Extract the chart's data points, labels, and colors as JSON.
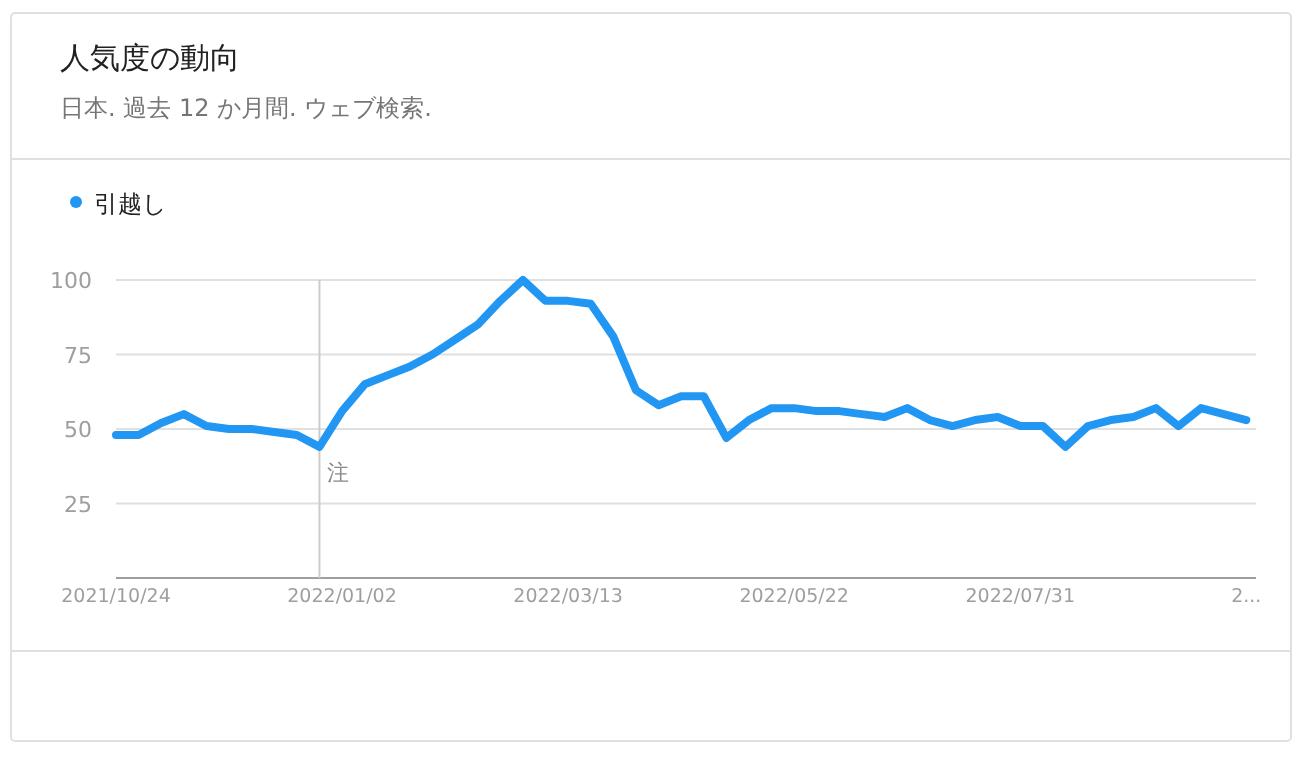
{
  "chart_data": {
    "type": "line",
    "title": "人気度の動向",
    "subtitle": "日本. 過去 12 か月間. ウェブ検索.",
    "x": [
      "2021-10-24",
      "2021-10-31",
      "2021-11-07",
      "2021-11-14",
      "2021-11-21",
      "2021-11-28",
      "2021-12-05",
      "2021-12-12",
      "2021-12-19",
      "2021-12-26",
      "2022-01-02",
      "2022-01-09",
      "2022-01-16",
      "2022-01-23",
      "2022-01-30",
      "2022-02-06",
      "2022-02-13",
      "2022-02-20",
      "2022-02-27",
      "2022-03-06",
      "2022-03-13",
      "2022-03-20",
      "2022-03-27",
      "2022-04-03",
      "2022-04-10",
      "2022-04-17",
      "2022-04-24",
      "2022-05-01",
      "2022-05-08",
      "2022-05-15",
      "2022-05-22",
      "2022-05-29",
      "2022-06-05",
      "2022-06-12",
      "2022-06-19",
      "2022-06-26",
      "2022-07-03",
      "2022-07-10",
      "2022-07-17",
      "2022-07-24",
      "2022-07-31",
      "2022-08-07",
      "2022-08-14",
      "2022-08-21",
      "2022-08-28",
      "2022-09-04",
      "2022-09-11",
      "2022-09-18",
      "2022-09-25",
      "2022-10-02",
      "2022-10-09"
    ],
    "series": [
      {
        "name": "引越し",
        "color": "#2196f3",
        "values": [
          48,
          48,
          52,
          55,
          51,
          50,
          50,
          49,
          48,
          44,
          56,
          65,
          68,
          71,
          75,
          80,
          85,
          93,
          100,
          93,
          93,
          92,
          81,
          63,
          58,
          61,
          61,
          47,
          53,
          57,
          57,
          56,
          56,
          55,
          54,
          57,
          53,
          51,
          53,
          54,
          51,
          51,
          44,
          51,
          53,
          54,
          57,
          51,
          57,
          55,
          53
        ]
      }
    ],
    "xlim": [
      "2021-10-24",
      "2022-10-12"
    ],
    "xticks": [
      {
        "value": "2021-10-24",
        "label": "2021/10/24"
      },
      {
        "value": "2022-01-02",
        "label": "2022/01/02"
      },
      {
        "value": "2022-03-13",
        "label": "2022/03/13"
      },
      {
        "value": "2022-05-22",
        "label": "2022/05/22"
      },
      {
        "value": "2022-07-31",
        "label": "2022/07/31"
      },
      {
        "value": "2022-10-09",
        "label": "2..."
      }
    ],
    "ylim": [
      0,
      100
    ],
    "yticks": [
      25,
      50,
      75,
      100
    ],
    "grid": "y",
    "legend": "top left",
    "marker": "none",
    "line_style": "solid",
    "ref_lines": [
      {
        "axis": "x",
        "value": "2021-12-26",
        "label": "注",
        "color": "#cccccc"
      }
    ]
  }
}
